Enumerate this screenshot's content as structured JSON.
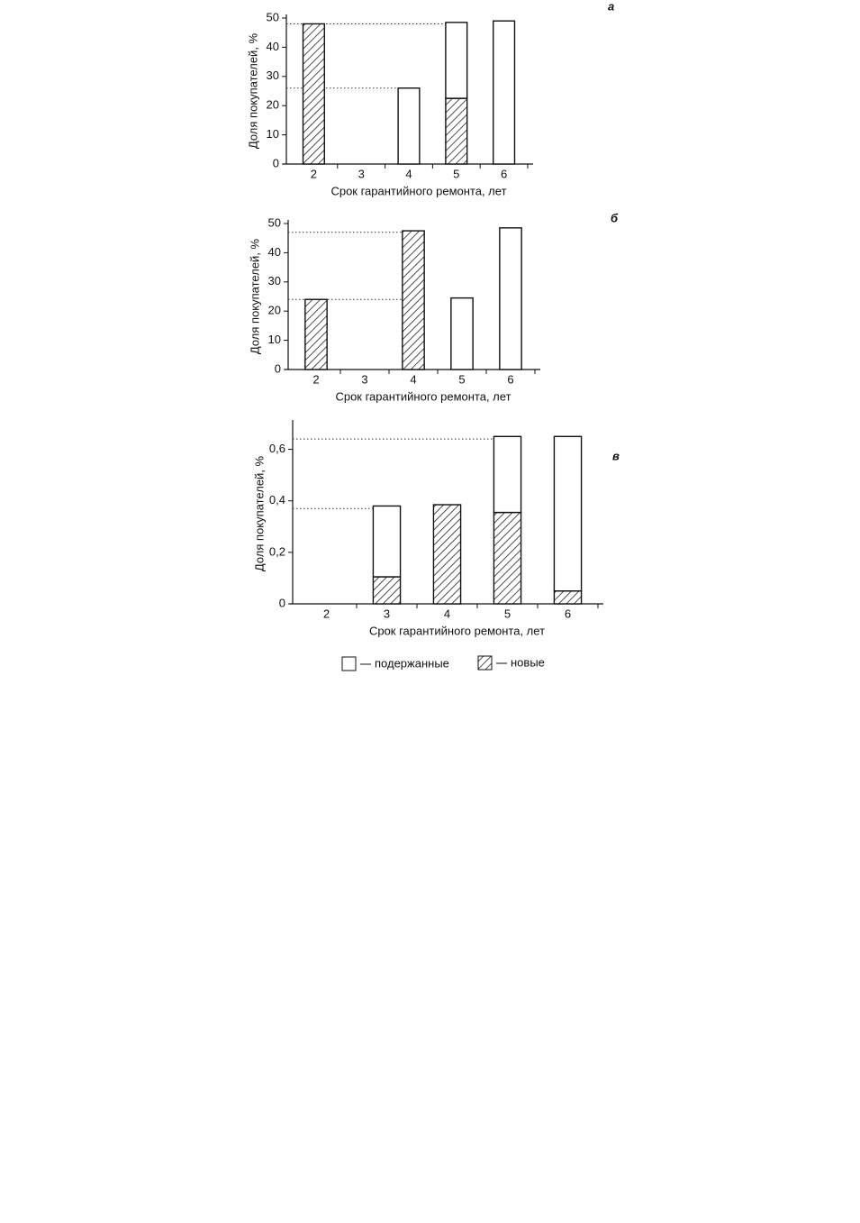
{
  "chart_data": [
    {
      "type": "bar",
      "stacked": true,
      "panel_label": "а",
      "y_label": "Доля покупателей, %",
      "x_label": "Срок гарантийного ремонта, лет",
      "categories": [
        "2",
        "3",
        "4",
        "5",
        "6"
      ],
      "series": [
        {
          "name": "новые",
          "hatch": true,
          "values": [
            48,
            null,
            null,
            22.5,
            null
          ]
        },
        {
          "name": "подержанные",
          "hatch": false,
          "values": [
            null,
            null,
            26,
            26,
            49
          ]
        }
      ],
      "ylim": [
        0,
        50
      ],
      "yticks": [
        0,
        10,
        20,
        30,
        40,
        50
      ],
      "reference_lines": [
        48,
        26
      ]
    },
    {
      "type": "bar",
      "stacked": true,
      "panel_label": "б",
      "y_label": "Доля покупателей, %",
      "x_label": "Срок гарантийного ремонта, лет",
      "categories": [
        "2",
        "3",
        "4",
        "5",
        "6"
      ],
      "series": [
        {
          "name": "новые",
          "hatch": true,
          "values": [
            24,
            null,
            47.5,
            null,
            null
          ]
        },
        {
          "name": "подержанные",
          "hatch": false,
          "values": [
            null,
            null,
            null,
            24.5,
            48.5
          ]
        }
      ],
      "ylim": [
        0,
        50
      ],
      "yticks": [
        0,
        10,
        20,
        30,
        40,
        50
      ],
      "reference_lines": [
        47,
        24
      ]
    },
    {
      "type": "bar",
      "stacked": true,
      "panel_label": "в",
      "y_label": "Доля покупателей, %",
      "x_label": "Срок гарантийного ремонта, лет",
      "categories": [
        "2",
        "3",
        "4",
        "5",
        "6"
      ],
      "series": [
        {
          "name": "новые",
          "hatch": true,
          "values": [
            null,
            0.105,
            0.385,
            0.355,
            0.05
          ]
        },
        {
          "name": "подержанные",
          "hatch": false,
          "values": [
            null,
            0.275,
            null,
            0.295,
            0.6
          ]
        }
      ],
      "ylim": [
        0,
        0.7
      ],
      "yticks": [
        0,
        {
          "value": 0.2,
          "label": "0,2"
        },
        {
          "value": 0.4,
          "label": "0,4"
        },
        {
          "value": 0.6,
          "label": "0,6"
        }
      ],
      "reference_lines": [
        0.64,
        0.37
      ]
    }
  ]
}
